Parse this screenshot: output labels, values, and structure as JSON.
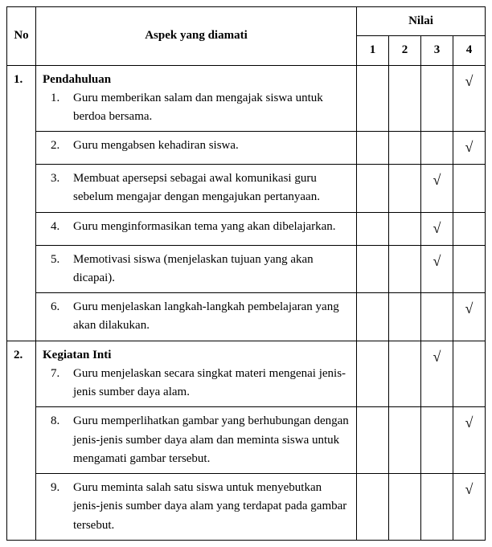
{
  "headers": {
    "no": "No",
    "aspek": "Aspek yang diamati",
    "nilai": "Nilai",
    "c1": "1",
    "c2": "2",
    "c3": "3",
    "c4": "4"
  },
  "check": "√",
  "sections": [
    {
      "no": "1.",
      "title": "Pendahuluan",
      "items": [
        {
          "n": "1.",
          "text": "Guru memberikan salam dan mengajak siswa untuk berdoa bersama.",
          "score": 4
        },
        {
          "n": "2.",
          "text": "Guru mengabsen kehadiran siswa.",
          "score": 4
        },
        {
          "n": "3.",
          "text": "Membuat apersepsi sebagai awal komunikasi guru sebelum mengajar dengan mengajukan pertanyaan.",
          "score": 3
        },
        {
          "n": "4.",
          "text": "Guru menginformasikan tema yang akan dibelajarkan.",
          "score": 3
        },
        {
          "n": "5.",
          "text": "Memotivasi siswa (menjelaskan tujuan yang akan dicapai).",
          "score": 3
        },
        {
          "n": "6.",
          "text": "Guru menjelaskan langkah-langkah pembelajaran yang akan dilakukan.",
          "score": 4
        }
      ]
    },
    {
      "no": "2.",
      "title": "Kegiatan Inti",
      "items": [
        {
          "n": "7.",
          "text": "Guru menjelaskan secara singkat materi mengenai jenis-jenis sumber daya alam.",
          "score": 3
        },
        {
          "n": "8.",
          "text": "Guru memperlihatkan gambar yang berhubungan dengan jenis-jenis sumber daya alam dan meminta siswa untuk mengamati gambar tersebut.",
          "score": 4
        },
        {
          "n": "9.",
          "text": "Guru meminta salah satu siswa untuk menyebutkan jenis-jenis sumber daya alam yang terdapat pada gambar tersebut.",
          "score": 4
        }
      ]
    }
  ],
  "styles": {
    "border_color": "#000000",
    "background": "#ffffff",
    "font": "Times New Roman"
  }
}
